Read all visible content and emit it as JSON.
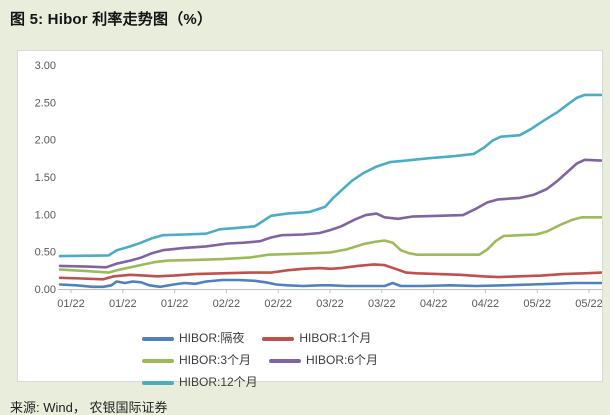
{
  "page": {
    "title": "图 5: Hibor 利率走势图（%）",
    "source_note": "来源: Wind， 农银国际证券",
    "background_color": "#e9eddc"
  },
  "chart_data": {
    "type": "line",
    "title": "图 5: Hibor 利率走势图（%）",
    "xlabel": "",
    "ylabel": "",
    "ylim": [
      0,
      3
    ],
    "grid": false,
    "legend_position": "bottom",
    "y_tick_labels": [
      "3.00",
      "2.50",
      "2.00",
      "1.50",
      "1.00",
      "0.50",
      "0.00"
    ],
    "x_tick_labels": [
      "01/22",
      "01/22",
      "01/22",
      "02/22",
      "02/22",
      "03/22",
      "03/22",
      "04/22",
      "04/22",
      "05/22",
      "05/22"
    ],
    "x_axis_note": "daily dates Jan 2022 - May 2022, position given as fraction 0-1 of axis",
    "series": [
      {
        "name": "HIBOR:隔夜",
        "color": "#4F81BD",
        "points": [
          [
            0,
            0.06
          ],
          [
            0.03,
            0.05
          ],
          [
            0.06,
            0.03
          ],
          [
            0.08,
            0.03
          ],
          [
            0.095,
            0.05
          ],
          [
            0.105,
            0.1
          ],
          [
            0.12,
            0.08
          ],
          [
            0.135,
            0.1
          ],
          [
            0.15,
            0.09
          ],
          [
            0.165,
            0.05
          ],
          [
            0.185,
            0.03
          ],
          [
            0.21,
            0.06
          ],
          [
            0.23,
            0.08
          ],
          [
            0.25,
            0.07
          ],
          [
            0.27,
            0.1
          ],
          [
            0.3,
            0.12
          ],
          [
            0.33,
            0.12
          ],
          [
            0.36,
            0.11
          ],
          [
            0.38,
            0.09
          ],
          [
            0.4,
            0.06
          ],
          [
            0.42,
            0.05
          ],
          [
            0.45,
            0.04
          ],
          [
            0.48,
            0.05
          ],
          [
            0.5,
            0.05
          ],
          [
            0.53,
            0.04
          ],
          [
            0.57,
            0.04
          ],
          [
            0.6,
            0.04
          ],
          [
            0.615,
            0.08
          ],
          [
            0.63,
            0.04
          ],
          [
            0.67,
            0.04
          ],
          [
            0.72,
            0.05
          ],
          [
            0.77,
            0.04
          ],
          [
            0.82,
            0.05
          ],
          [
            0.87,
            0.06
          ],
          [
            0.91,
            0.07
          ],
          [
            0.95,
            0.08
          ],
          [
            1,
            0.08
          ]
        ]
      },
      {
        "name": "HIBOR:1个月",
        "color": "#C0504D",
        "points": [
          [
            0,
            0.15
          ],
          [
            0.04,
            0.14
          ],
          [
            0.08,
            0.13
          ],
          [
            0.1,
            0.17
          ],
          [
            0.13,
            0.19
          ],
          [
            0.155,
            0.18
          ],
          [
            0.18,
            0.17
          ],
          [
            0.21,
            0.18
          ],
          [
            0.25,
            0.2
          ],
          [
            0.3,
            0.21
          ],
          [
            0.35,
            0.22
          ],
          [
            0.39,
            0.22
          ],
          [
            0.42,
            0.25
          ],
          [
            0.45,
            0.27
          ],
          [
            0.48,
            0.28
          ],
          [
            0.5,
            0.27
          ],
          [
            0.52,
            0.28
          ],
          [
            0.55,
            0.31
          ],
          [
            0.58,
            0.33
          ],
          [
            0.6,
            0.32
          ],
          [
            0.62,
            0.27
          ],
          [
            0.64,
            0.22
          ],
          [
            0.66,
            0.21
          ],
          [
            0.7,
            0.2
          ],
          [
            0.74,
            0.19
          ],
          [
            0.78,
            0.17
          ],
          [
            0.81,
            0.16
          ],
          [
            0.85,
            0.17
          ],
          [
            0.89,
            0.18
          ],
          [
            0.93,
            0.2
          ],
          [
            0.97,
            0.21
          ],
          [
            1,
            0.22
          ]
        ]
      },
      {
        "name": "HIBOR:3个月",
        "color": "#9BBB59",
        "points": [
          [
            0,
            0.26
          ],
          [
            0.05,
            0.24
          ],
          [
            0.09,
            0.22
          ],
          [
            0.105,
            0.25
          ],
          [
            0.13,
            0.29
          ],
          [
            0.155,
            0.33
          ],
          [
            0.175,
            0.36
          ],
          [
            0.2,
            0.38
          ],
          [
            0.25,
            0.39
          ],
          [
            0.3,
            0.4
          ],
          [
            0.35,
            0.42
          ],
          [
            0.385,
            0.46
          ],
          [
            0.43,
            0.47
          ],
          [
            0.47,
            0.48
          ],
          [
            0.5,
            0.49
          ],
          [
            0.53,
            0.53
          ],
          [
            0.56,
            0.6
          ],
          [
            0.58,
            0.63
          ],
          [
            0.6,
            0.65
          ],
          [
            0.615,
            0.62
          ],
          [
            0.63,
            0.52
          ],
          [
            0.645,
            0.48
          ],
          [
            0.66,
            0.46
          ],
          [
            0.72,
            0.46
          ],
          [
            0.775,
            0.46
          ],
          [
            0.79,
            0.53
          ],
          [
            0.805,
            0.64
          ],
          [
            0.82,
            0.71
          ],
          [
            0.85,
            0.72
          ],
          [
            0.88,
            0.73
          ],
          [
            0.9,
            0.77
          ],
          [
            0.925,
            0.86
          ],
          [
            0.948,
            0.93
          ],
          [
            0.965,
            0.96
          ],
          [
            1,
            0.96
          ]
        ]
      },
      {
        "name": "HIBOR:6个月",
        "color": "#8064A2",
        "points": [
          [
            0,
            0.31
          ],
          [
            0.05,
            0.3
          ],
          [
            0.085,
            0.29
          ],
          [
            0.105,
            0.34
          ],
          [
            0.13,
            0.38
          ],
          [
            0.15,
            0.42
          ],
          [
            0.17,
            0.48
          ],
          [
            0.19,
            0.52
          ],
          [
            0.23,
            0.55
          ],
          [
            0.27,
            0.57
          ],
          [
            0.31,
            0.61
          ],
          [
            0.34,
            0.62
          ],
          [
            0.37,
            0.64
          ],
          [
            0.39,
            0.69
          ],
          [
            0.41,
            0.72
          ],
          [
            0.45,
            0.73
          ],
          [
            0.48,
            0.75
          ],
          [
            0.5,
            0.79
          ],
          [
            0.52,
            0.84
          ],
          [
            0.545,
            0.93
          ],
          [
            0.565,
            0.99
          ],
          [
            0.585,
            1.01
          ],
          [
            0.6,
            0.96
          ],
          [
            0.625,
            0.94
          ],
          [
            0.65,
            0.97
          ],
          [
            0.7,
            0.98
          ],
          [
            0.745,
            0.99
          ],
          [
            0.77,
            1.08
          ],
          [
            0.79,
            1.16
          ],
          [
            0.81,
            1.2
          ],
          [
            0.85,
            1.22
          ],
          [
            0.875,
            1.26
          ],
          [
            0.9,
            1.34
          ],
          [
            0.92,
            1.45
          ],
          [
            0.94,
            1.58
          ],
          [
            0.955,
            1.68
          ],
          [
            0.97,
            1.73
          ],
          [
            1,
            1.72
          ]
        ]
      },
      {
        "name": "HIBOR:12个月",
        "color": "#4BACC6",
        "points": [
          [
            0,
            0.44
          ],
          [
            0.09,
            0.45
          ],
          [
            0.105,
            0.52
          ],
          [
            0.13,
            0.57
          ],
          [
            0.15,
            0.62
          ],
          [
            0.17,
            0.68
          ],
          [
            0.19,
            0.72
          ],
          [
            0.23,
            0.73
          ],
          [
            0.27,
            0.74
          ],
          [
            0.295,
            0.8
          ],
          [
            0.33,
            0.82
          ],
          [
            0.36,
            0.84
          ],
          [
            0.375,
            0.91
          ],
          [
            0.39,
            0.98
          ],
          [
            0.42,
            1.01
          ],
          [
            0.46,
            1.03
          ],
          [
            0.49,
            1.1
          ],
          [
            0.505,
            1.22
          ],
          [
            0.52,
            1.32
          ],
          [
            0.54,
            1.45
          ],
          [
            0.56,
            1.55
          ],
          [
            0.585,
            1.64
          ],
          [
            0.61,
            1.7
          ],
          [
            0.64,
            1.72
          ],
          [
            0.68,
            1.75
          ],
          [
            0.73,
            1.78
          ],
          [
            0.765,
            1.81
          ],
          [
            0.785,
            1.9
          ],
          [
            0.8,
            1.99
          ],
          [
            0.815,
            2.04
          ],
          [
            0.85,
            2.06
          ],
          [
            0.87,
            2.14
          ],
          [
            0.895,
            2.26
          ],
          [
            0.92,
            2.37
          ],
          [
            0.94,
            2.48
          ],
          [
            0.955,
            2.56
          ],
          [
            0.97,
            2.6
          ],
          [
            1,
            2.6
          ]
        ]
      }
    ]
  }
}
